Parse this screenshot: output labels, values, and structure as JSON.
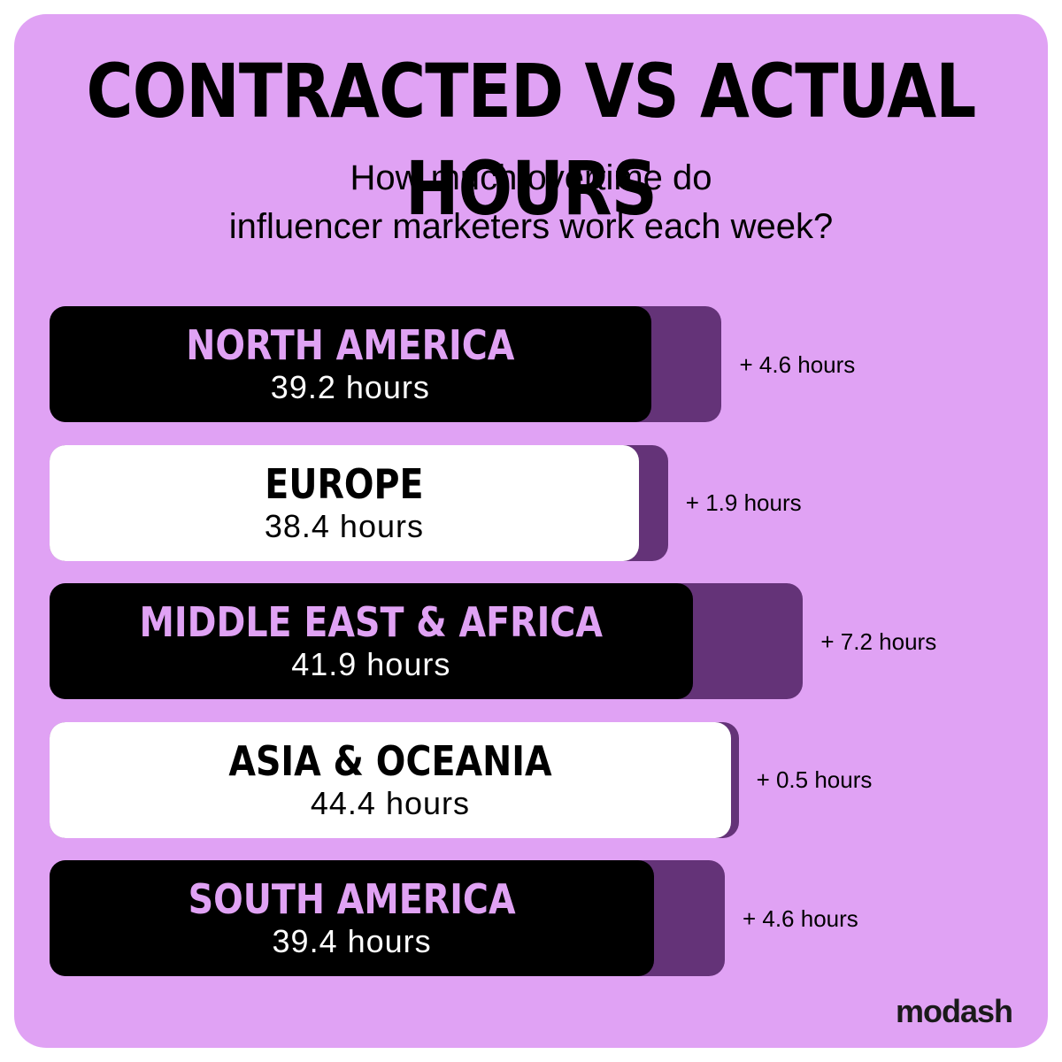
{
  "title": "CONTRACTED VS ACTUAL HOURS",
  "subtitle": "How much overtime do\ninfluencer marketers work each week?",
  "brand": "modash",
  "colors": {
    "background": "#e0a2f4",
    "overtime_bar": "#643378",
    "dark_bar": "#000000",
    "light_bar": "#ffffff"
  },
  "chart_data": {
    "type": "bar",
    "orientation": "horizontal",
    "stacked": true,
    "categories": [
      "NORTH AMERICA",
      "EUROPE",
      "MIDDLE EAST & AFRICA",
      "ASIA & OCEANIA",
      "SOUTH AMERICA"
    ],
    "series": [
      {
        "values": [
          39.2,
          38.4,
          41.9,
          44.4,
          39.4
        ]
      },
      {
        "values": [
          4.6,
          1.9,
          7.2,
          0.5,
          4.6
        ]
      }
    ],
    "value_labels": [
      "39.2 hours",
      "38.4 hours",
      "41.9 hours",
      "44.4 hours",
      "39.4 hours"
    ],
    "overtime_labels": [
      "+ 4.6 hours",
      "+ 1.9 hours",
      "+ 7.2 hours",
      "+ 0.5 hours",
      "+ 4.6 hours"
    ],
    "bar_styles": [
      "dark",
      "light",
      "dark",
      "light",
      "dark"
    ],
    "grid": false,
    "legend": "none"
  }
}
